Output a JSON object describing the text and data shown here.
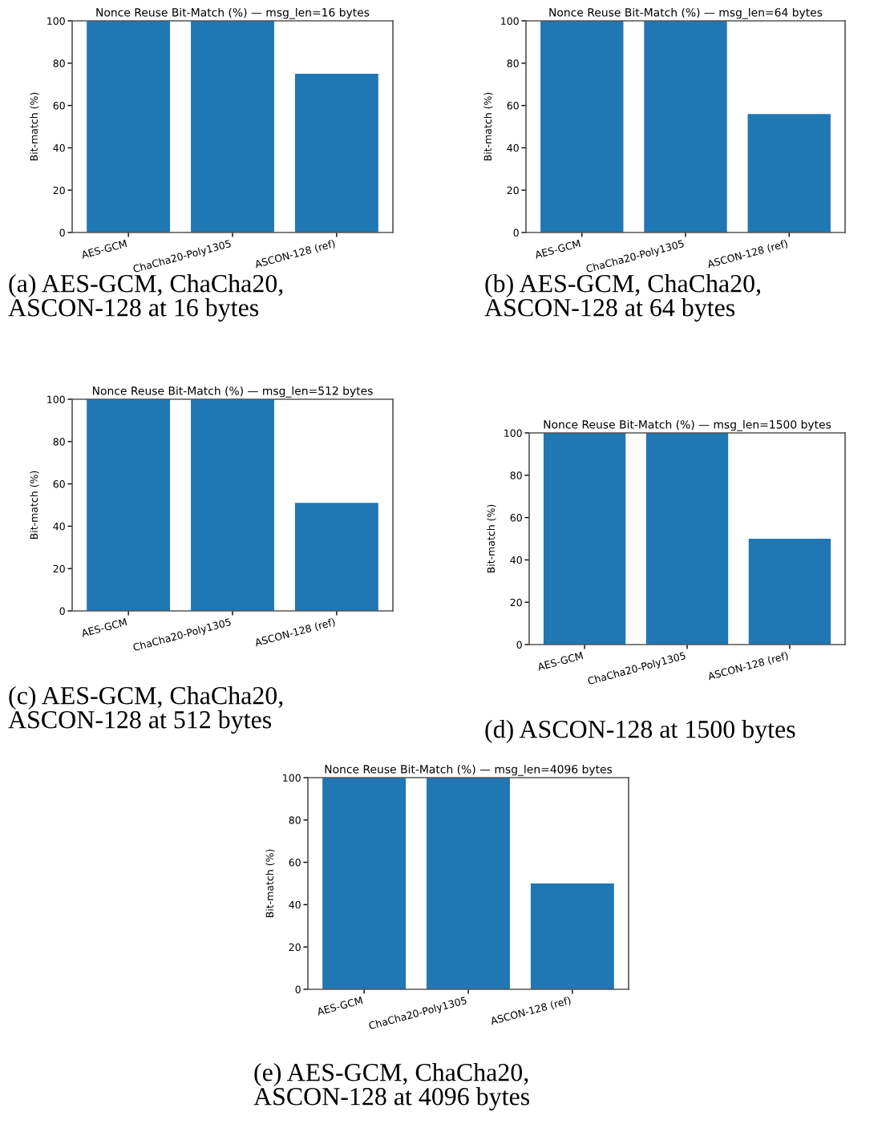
{
  "chart_data": [
    {
      "type": "bar",
      "title": "Nonce Reuse Bit-Match (%) — msg_len=16 bytes",
      "ylabel": "Bit-match (%)",
      "categories": [
        "AES-GCM",
        "ChaCha20-Poly1305",
        "ASCON-128 (ref)"
      ],
      "values": [
        100,
        100,
        75
      ],
      "color": "#1f77b4",
      "ylim": [
        0,
        100
      ],
      "yticks": [
        0,
        20,
        40,
        60,
        80,
        100
      ],
      "annotations": [
        "(a) AES-GCM, ChaCha20, ASCON-128 at 16 bytes"
      ]
    },
    {
      "type": "bar",
      "title": "Nonce Reuse Bit-Match (%) — msg_len=64 bytes",
      "ylabel": "Bit-match (%)",
      "categories": [
        "AES-GCM",
        "ChaCha20-Poly1305",
        "ASCON-128 (ref)"
      ],
      "values": [
        100,
        100,
        56
      ],
      "color": "#1f77b4",
      "ylim": [
        0,
        100
      ],
      "yticks": [
        0,
        20,
        40,
        60,
        80,
        100
      ],
      "annotations": [
        "(b) AES-GCM, ChaCha20, ASCON-128 at 64 bytes"
      ]
    },
    {
      "type": "bar",
      "title": "Nonce Reuse Bit-Match (%) — msg_len=512 bytes",
      "ylabel": "Bit-match (%)",
      "categories": [
        "AES-GCM",
        "ChaCha20-Poly1305",
        "ASCON-128 (ref)"
      ],
      "values": [
        100,
        100,
        51
      ],
      "color": "#1f77b4",
      "ylim": [
        0,
        100
      ],
      "yticks": [
        0,
        20,
        40,
        60,
        80,
        100
      ],
      "annotations": [
        "(c) AES-GCM, ChaCha20, ASCON-128 at 512 bytes"
      ]
    },
    {
      "type": "bar",
      "title": "Nonce Reuse Bit-Match (%) — msg_len=1500 bytes",
      "ylabel": "Bit-match (%)",
      "categories": [
        "AES-GCM",
        "ChaCha20-Poly1305",
        "ASCON-128 (ref)"
      ],
      "values": [
        100,
        100,
        50
      ],
      "color": "#1f77b4",
      "ylim": [
        0,
        100
      ],
      "yticks": [
        0,
        20,
        40,
        60,
        80,
        100
      ],
      "annotations": [
        "(d) ASCON-128 at 1500 bytes"
      ]
    },
    {
      "type": "bar",
      "title": "Nonce Reuse Bit-Match (%) — msg_len=4096 bytes",
      "ylabel": "Bit-match (%)",
      "categories": [
        "AES-GCM",
        "ChaCha20-Poly1305",
        "ASCON-128 (ref)"
      ],
      "values": [
        100,
        100,
        50
      ],
      "color": "#1f77b4",
      "ylim": [
        0,
        100
      ],
      "yticks": [
        0,
        20,
        40,
        60,
        80,
        100
      ],
      "annotations": [
        "(e) AES-GCM, ChaCha20, ASCON-128 at 4096 bytes"
      ]
    }
  ]
}
